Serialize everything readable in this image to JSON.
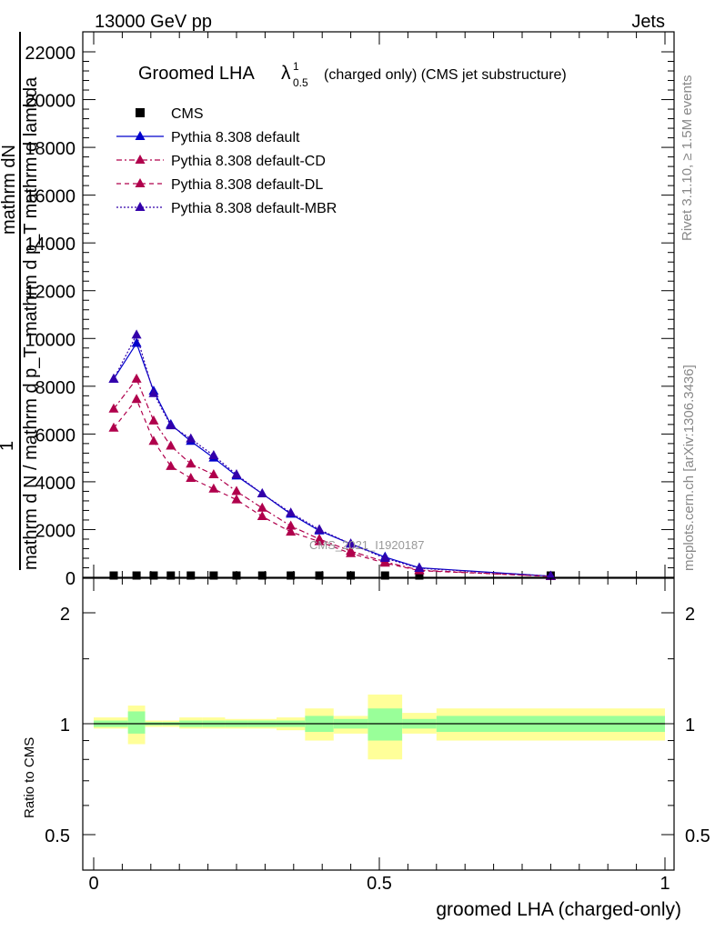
{
  "header": {
    "left": "13000 GeV pp",
    "right": "Jets",
    "side_top": "Rivet 3.1.10, ≥ 1.5M events",
    "side_bottom": "mcplots.cern.ch [arXiv:1306.3436]"
  },
  "chart_data": [
    {
      "type": "line",
      "title_main": "Groomed LHA",
      "title_lambda": "λ",
      "title_sup": "1",
      "title_sub": "0.5",
      "title_rest": "(charged only) (CMS jet substructure)",
      "ylabel_top": "mathrm dN",
      "ylabel_mid": "mathrm d p_T mathrm d lambda",
      "ylabel_one": "1",
      "ylabel_bottom": "mathrm d N / mathrm d p_T",
      "watermark": "CMS_2021_I1920187",
      "xlim": [
        0,
        1
      ],
      "ylim": [
        0,
        22000
      ],
      "yticks": [
        0,
        2000,
        4000,
        6000,
        8000,
        10000,
        12000,
        14000,
        16000,
        18000,
        20000,
        22000
      ],
      "ytick_labels": [
        "0",
        "2000",
        "4000",
        "6000",
        "8000",
        "10000",
        "12000",
        "14000",
        "16000",
        "18000",
        "20000",
        "22000"
      ],
      "x": [
        0.035,
        0.075,
        0.105,
        0.135,
        0.17,
        0.21,
        0.25,
        0.295,
        0.345,
        0.395,
        0.45,
        0.51,
        0.57,
        0.8
      ],
      "series": [
        {
          "name": "CMS",
          "color": "#000000",
          "marker": "square",
          "line": "none",
          "values": [
            40,
            40,
            40,
            40,
            40,
            40,
            40,
            40,
            40,
            40,
            40,
            40,
            40,
            40
          ]
        },
        {
          "name": "Pythia 8.308 default",
          "color": "#0000cc",
          "marker": "triangle",
          "line": "solid",
          "values": [
            8300,
            9800,
            7800,
            6400,
            5700,
            5000,
            4250,
            3500,
            2650,
            1950,
            1400,
            850,
            400,
            50
          ]
        },
        {
          "name": "Pythia 8.308 default-CD",
          "color": "#b0004c",
          "marker": "triangle",
          "line": "dashdot",
          "values": [
            7050,
            8300,
            6550,
            5500,
            4750,
            4300,
            3600,
            2900,
            2150,
            1600,
            1100,
            650,
            300,
            40
          ]
        },
        {
          "name": "Pythia 8.308 default-DL",
          "color": "#b0004c",
          "marker": "triangle",
          "line": "dashed",
          "values": [
            6250,
            7450,
            5700,
            4650,
            4150,
            3700,
            3250,
            2550,
            1900,
            1500,
            1000,
            600,
            280,
            40
          ]
        },
        {
          "name": "Pythia 8.308 default-MBR",
          "color": "#3300aa",
          "marker": "triangle",
          "line": "dotted",
          "values": [
            8300,
            10150,
            7700,
            6350,
            5800,
            5100,
            4300,
            3500,
            2700,
            2000,
            1400,
            800,
            380,
            50
          ]
        }
      ]
    },
    {
      "type": "bar",
      "ylabel": "Ratio to CMS",
      "xlabel": "groomed LHA (charged-only)",
      "xticks": [
        0,
        0.5,
        1
      ],
      "xtick_labels": [
        "0",
        "0.5",
        "1"
      ],
      "yticks": [
        0.5,
        1,
        2
      ],
      "ytick_labels": [
        "0.5",
        "1",
        "2"
      ],
      "ylim": [
        0.4,
        2.4
      ],
      "yscale": "log",
      "band_colors": {
        "stat": "#99ff99",
        "total": "#ffff99"
      },
      "bins": [
        {
          "x_low": 0.0,
          "x_high": 0.06,
          "stat": [
            0.98,
            1.02
          ],
          "total": [
            0.97,
            1.04
          ]
        },
        {
          "x_low": 0.06,
          "x_high": 0.09,
          "stat": [
            0.94,
            1.08
          ],
          "total": [
            0.88,
            1.12
          ]
        },
        {
          "x_low": 0.09,
          "x_high": 0.12,
          "stat": [
            0.99,
            1.01
          ],
          "total": [
            0.98,
            1.02
          ]
        },
        {
          "x_low": 0.12,
          "x_high": 0.15,
          "stat": [
            0.99,
            1.01
          ],
          "total": [
            0.98,
            1.02
          ]
        },
        {
          "x_low": 0.15,
          "x_high": 0.19,
          "stat": [
            0.98,
            1.02
          ],
          "total": [
            0.97,
            1.04
          ]
        },
        {
          "x_low": 0.19,
          "x_high": 0.23,
          "stat": [
            0.98,
            1.02
          ],
          "total": [
            0.97,
            1.04
          ]
        },
        {
          "x_low": 0.23,
          "x_high": 0.27,
          "stat": [
            0.98,
            1.02
          ],
          "total": [
            0.97,
            1.03
          ]
        },
        {
          "x_low": 0.27,
          "x_high": 0.32,
          "stat": [
            0.98,
            1.02
          ],
          "total": [
            0.97,
            1.03
          ]
        },
        {
          "x_low": 0.32,
          "x_high": 0.37,
          "stat": [
            0.98,
            1.02
          ],
          "total": [
            0.96,
            1.04
          ]
        },
        {
          "x_low": 0.37,
          "x_high": 0.42,
          "stat": [
            0.95,
            1.05
          ],
          "total": [
            0.9,
            1.1
          ]
        },
        {
          "x_low": 0.42,
          "x_high": 0.48,
          "stat": [
            0.97,
            1.03
          ],
          "total": [
            0.94,
            1.05
          ]
        },
        {
          "x_low": 0.48,
          "x_high": 0.54,
          "stat": [
            0.9,
            1.1
          ],
          "total": [
            0.8,
            1.2
          ]
        },
        {
          "x_low": 0.54,
          "x_high": 0.6,
          "stat": [
            0.97,
            1.03
          ],
          "total": [
            0.94,
            1.07
          ]
        },
        {
          "x_low": 0.6,
          "x_high": 1.0,
          "stat": [
            0.95,
            1.05
          ],
          "total": [
            0.9,
            1.1
          ]
        }
      ]
    }
  ]
}
